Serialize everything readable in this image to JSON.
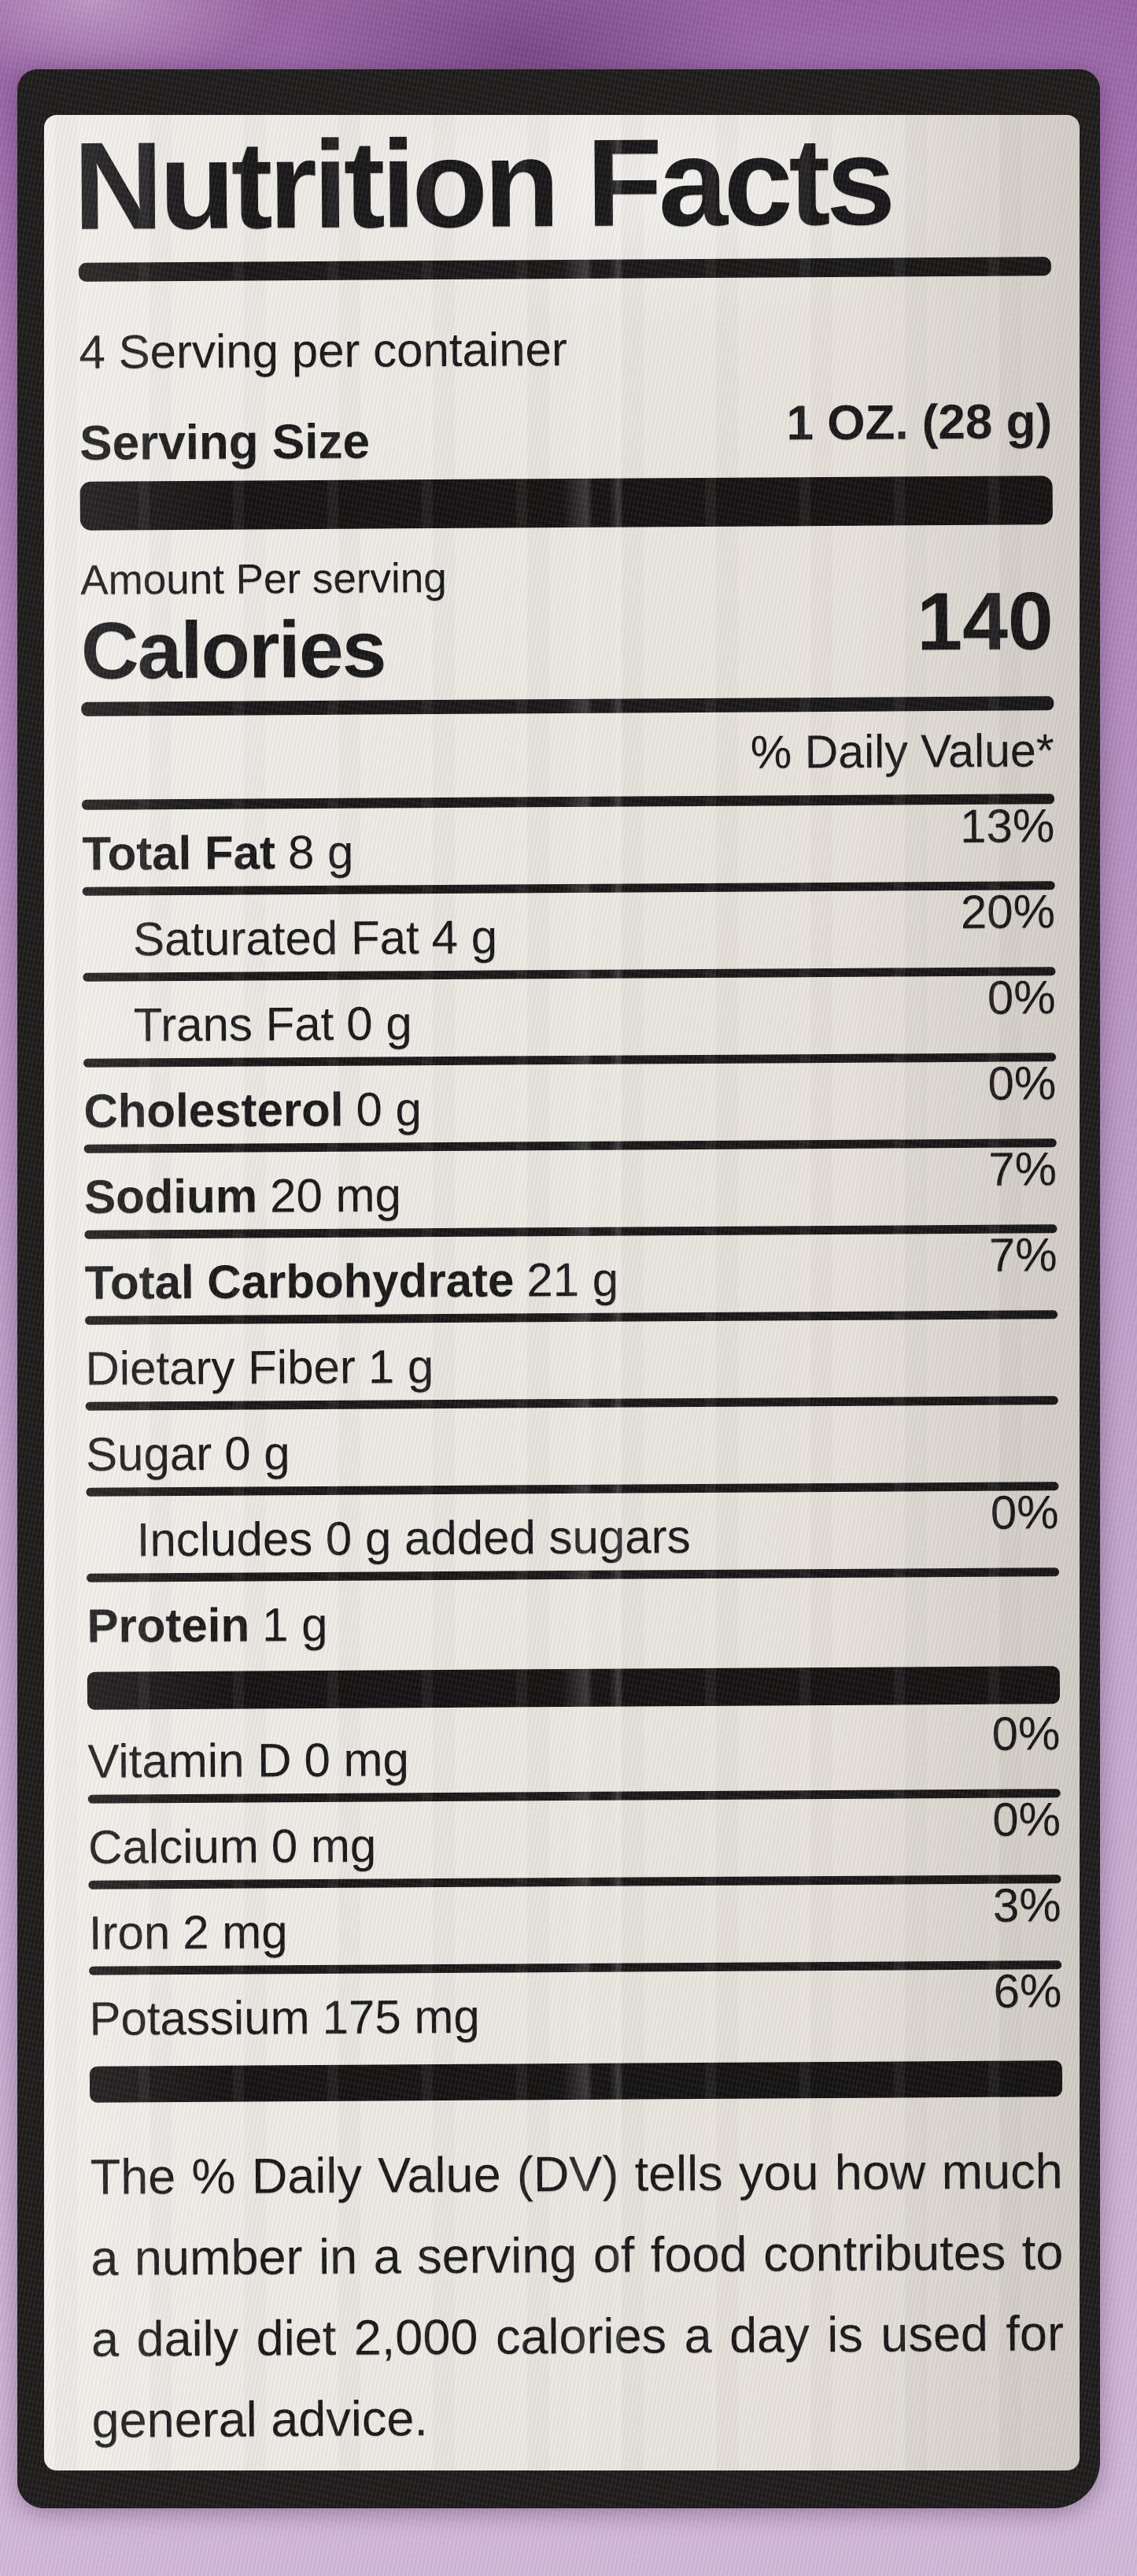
{
  "colors": {
    "fabric_purple": "#9c68a9",
    "fabric_lavender": "#cdb2d5",
    "label_bg": "#edebe4",
    "ink": "#161616"
  },
  "label": {
    "title": "Nutrition Facts",
    "servings_per_container": "4 Serving per container",
    "serving_size": {
      "label": "Serving Size",
      "value": "1 OZ. (28 g)"
    },
    "amount_per_serving": "Amount Per serving",
    "calories": {
      "label": "Calories",
      "value": "140"
    },
    "daily_value_header": "% Daily Value*",
    "rows": [
      {
        "name": "Total Fat",
        "amount": "8 g",
        "percent": "13%"
      },
      {
        "name": "Saturated Fat",
        "amount": "4 g",
        "percent": "20%"
      },
      {
        "name": "Trans Fat",
        "amount": "0 g",
        "percent": "0%"
      },
      {
        "name": "Cholesterol",
        "amount": "0 g",
        "percent": "0%"
      },
      {
        "name": "Sodium",
        "amount": "20 mg",
        "percent": "7%"
      },
      {
        "name": "Total Carbohydrate",
        "amount": "21 g",
        "percent": "7%"
      },
      {
        "name": "Dietary Fiber",
        "amount": "1 g",
        "percent": ""
      },
      {
        "name": "Sugar",
        "amount": "0 g",
        "percent": ""
      },
      {
        "name": "Includes 0 g added sugars",
        "amount": "",
        "percent": "0%"
      },
      {
        "name": "Protein",
        "amount": "1 g",
        "percent": ""
      },
      {
        "name": "Vitamin D",
        "amount": "0 mg",
        "percent": "0%"
      },
      {
        "name": "Calcium",
        "amount": "0 mg",
        "percent": "0%"
      },
      {
        "name": "Iron",
        "amount": "2 mg",
        "percent": "3%"
      },
      {
        "name": "Potassium",
        "amount": "175 mg",
        "percent": "6%"
      }
    ],
    "footnote": "The % Daily Value (DV) tells you how much a number in a serving of food contributes to a daily diet 2,000 calories a day is used for general advice."
  }
}
